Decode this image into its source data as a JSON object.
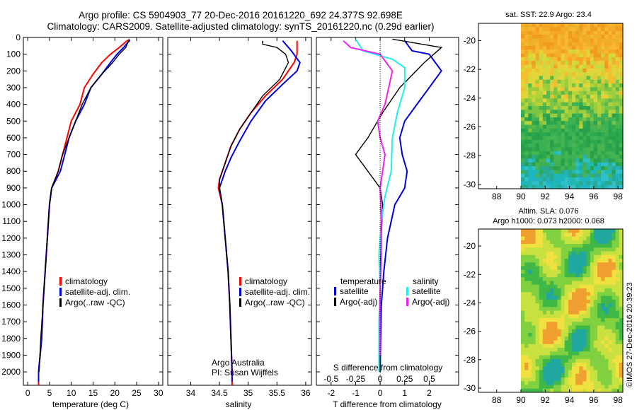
{
  "title": {
    "line1": "Argo profile: CS 5904903_77 20-Dec-2016 20161220_692 24.377S 92.698E",
    "line2": "Climatology: CARS2009. Satellite-adjusted climatology: synTS_20161220.nc (0.29d earlier)"
  },
  "colors": {
    "climatology": "#ff0000",
    "satellite": "#0000dd",
    "argo": "#000000",
    "sat_salinity": "#22eeee",
    "argo_adj_salinity": "#ee22ee"
  },
  "chart_data": [
    {
      "type": "line",
      "id": "temperature",
      "xlabel": "temperature (deg C)",
      "xlim": [
        -1,
        31
      ],
      "xticks": [
        0,
        5,
        10,
        15,
        20,
        25,
        30
      ],
      "ylim": [
        2080,
        0
      ],
      "yticks": [
        0,
        100,
        200,
        300,
        400,
        500,
        600,
        700,
        800,
        900,
        1000,
        1100,
        1200,
        1300,
        1400,
        1500,
        1600,
        1700,
        1800,
        1900,
        2000
      ],
      "legend": [
        "climatology",
        "satellite-adj. clim.",
        "Argo(..raw -QC)"
      ],
      "series": [
        {
          "name": "climatology",
          "color": "#ff0000",
          "points": [
            [
              23,
              15
            ],
            [
              21,
              60
            ],
            [
              19,
              100
            ],
            [
              17,
              150
            ],
            [
              15,
              220
            ],
            [
              13,
              300
            ],
            [
              12,
              400
            ],
            [
              10,
              500
            ],
            [
              9,
              600
            ],
            [
              8,
              700
            ],
            [
              7,
              800
            ],
            [
              5.5,
              900
            ],
            [
              5,
              1000
            ],
            [
              4.5,
              1200
            ],
            [
              4,
              1400
            ],
            [
              3.5,
              1600
            ],
            [
              3.2,
              1800
            ],
            [
              2.5,
              2000
            ],
            [
              2.5,
              2080
            ]
          ]
        },
        {
          "name": "satellite-adj. clim.",
          "color": "#0000dd",
          "points": [
            [
              23.5,
              15
            ],
            [
              22,
              60
            ],
            [
              20.5,
              100
            ],
            [
              19,
              150
            ],
            [
              17,
              220
            ],
            [
              14.5,
              300
            ],
            [
              13,
              400
            ],
            [
              11,
              500
            ],
            [
              9.5,
              600
            ],
            [
              8.5,
              700
            ],
            [
              7.5,
              800
            ],
            [
              5.5,
              900
            ],
            [
              5,
              1000
            ],
            [
              4.5,
              1200
            ],
            [
              4,
              1400
            ],
            [
              3.5,
              1600
            ],
            [
              3.2,
              1800
            ],
            [
              2.5,
              2000
            ],
            [
              2.5,
              2060
            ]
          ]
        },
        {
          "name": "Argo(..raw -QC)",
          "color": "#000000",
          "points": [
            [
              23.3,
              10
            ],
            [
              22.5,
              60
            ],
            [
              21,
              100
            ],
            [
              19.5,
              150
            ],
            [
              17,
              220
            ],
            [
              14.5,
              300
            ],
            [
              12.5,
              400
            ],
            [
              11,
              500
            ],
            [
              9.5,
              600
            ],
            [
              8,
              700
            ],
            [
              7,
              800
            ],
            [
              5.5,
              900
            ],
            [
              5,
              1000
            ],
            [
              4.5,
              1200
            ],
            [
              4,
              1400
            ],
            [
              3.5,
              1600
            ],
            [
              3,
              1800
            ],
            [
              2.6,
              2000
            ]
          ]
        }
      ]
    },
    {
      "type": "line",
      "id": "salinity",
      "xlabel": "salinity",
      "xlim": [
        33.6,
        36.1
      ],
      "xticks": [
        34,
        34.5,
        35,
        35.5,
        36
      ],
      "xticklabels": [
        "34",
        "34.5",
        "35",
        "35.5",
        "36"
      ],
      "legend": [
        "climatology",
        "satellite-adj. clim.",
        "Argo(..raw -QC)"
      ],
      "annotation": [
        "Argo Australia",
        "PI: Susan Wijffels"
      ],
      "series": [
        {
          "name": "climatology",
          "color": "#ff0000",
          "points": [
            [
              35.85,
              20
            ],
            [
              35.85,
              100
            ],
            [
              35.8,
              150
            ],
            [
              35.6,
              250
            ],
            [
              35.3,
              350
            ],
            [
              35.05,
              450
            ],
            [
              34.85,
              550
            ],
            [
              34.7,
              650
            ],
            [
              34.6,
              750
            ],
            [
              34.5,
              850
            ],
            [
              34.48,
              900
            ],
            [
              34.55,
              1000
            ],
            [
              34.6,
              1200
            ],
            [
              34.65,
              1400
            ],
            [
              34.68,
              1600
            ],
            [
              34.7,
              1800
            ],
            [
              34.72,
              2000
            ],
            [
              34.72,
              2080
            ]
          ]
        },
        {
          "name": "satellite-adj. clim.",
          "color": "#0000dd",
          "points": [
            [
              35.6,
              20
            ],
            [
              35.75,
              80
            ],
            [
              35.9,
              150
            ],
            [
              35.85,
              200
            ],
            [
              35.6,
              280
            ],
            [
              35.3,
              380
            ],
            [
              35.05,
              500
            ],
            [
              34.85,
              620
            ],
            [
              34.7,
              720
            ],
            [
              34.6,
              800
            ],
            [
              34.5,
              900
            ],
            [
              34.55,
              1000
            ],
            [
              34.6,
              1200
            ],
            [
              34.65,
              1400
            ],
            [
              34.68,
              1600
            ],
            [
              34.7,
              1800
            ],
            [
              34.72,
              2000
            ],
            [
              34.72,
              2060
            ]
          ]
        },
        {
          "name": "Argo(..raw -QC)",
          "color": "#000000",
          "points": [
            [
              35.25,
              20
            ],
            [
              35.25,
              40
            ],
            [
              35.5,
              60
            ],
            [
              35.65,
              100
            ],
            [
              35.7,
              150
            ],
            [
              35.55,
              250
            ],
            [
              35.25,
              350
            ],
            [
              35.05,
              450
            ],
            [
              34.85,
              550
            ],
            [
              34.7,
              650
            ],
            [
              34.6,
              750
            ],
            [
              34.5,
              850
            ],
            [
              34.5,
              900
            ],
            [
              34.55,
              1000
            ],
            [
              34.6,
              1200
            ],
            [
              34.65,
              1400
            ],
            [
              34.68,
              1600
            ],
            [
              34.7,
              1800
            ],
            [
              34.72,
              2000
            ]
          ]
        }
      ]
    },
    {
      "type": "line",
      "id": "difference",
      "xlabel": "T difference from climatology",
      "xlabel_top": "S difference from climatology",
      "xlim": [
        -2.6,
        3.2
      ],
      "xticks": [
        -2,
        -1,
        0,
        1,
        2
      ],
      "xticklabels": [
        "-2",
        "-1",
        "0",
        "1",
        "2"
      ],
      "sticks": [
        -1,
        -0.5,
        0,
        0.5,
        1
      ],
      "sticklabels": [
        "-0.5",
        "-0.25",
        "0",
        "0.25",
        "0.5"
      ],
      "legend_title_left": "temperature",
      "legend_title_right": "salinity",
      "legend": [
        "satellite",
        "Argo(-adj)",
        "satellite",
        "Argo(-adj)"
      ],
      "series": [
        {
          "name": "satellite",
          "color": "#0000dd",
          "points": [
            [
              1,
              20
            ],
            [
              1.3,
              80
            ],
            [
              2,
              100
            ],
            [
              2.5,
              200
            ],
            [
              2,
              300
            ],
            [
              1.5,
              400
            ],
            [
              1,
              500
            ],
            [
              0.8,
              600
            ],
            [
              0.9,
              700
            ],
            [
              1.1,
              800
            ],
            [
              1,
              900
            ],
            [
              0.6,
              1000
            ],
            [
              0.3,
              1200
            ],
            [
              0.15,
              1400
            ],
            [
              0.05,
              1600
            ],
            [
              0.02,
              1800
            ],
            [
              0,
              2000
            ]
          ]
        },
        {
          "name": "Argo(-adj)",
          "color": "#000000",
          "points": [
            [
              0.5,
              10
            ],
            [
              2.5,
              60
            ],
            [
              1.8,
              150
            ],
            [
              0.8,
              300
            ],
            [
              0.1,
              450
            ],
            [
              -0.5,
              600
            ],
            [
              -1,
              700
            ],
            [
              -0.5,
              800
            ],
            [
              0,
              900
            ],
            [
              0.1,
              1000
            ],
            [
              0.05,
              1200
            ],
            [
              0,
              1400
            ],
            [
              0,
              1600
            ],
            [
              0,
              1800
            ],
            [
              0,
              2000
            ]
          ]
        },
        {
          "name": "satellite",
          "color": "#22eeee",
          "points": [
            [
              -1,
              10
            ],
            [
              -0.7,
              80
            ],
            [
              0.5,
              130
            ],
            [
              1,
              180
            ],
            [
              1,
              300
            ],
            [
              0.7,
              450
            ],
            [
              0.5,
              600
            ],
            [
              0.45,
              800
            ],
            [
              0.2,
              950
            ],
            [
              0.05,
              1100
            ],
            [
              -0.05,
              1300
            ],
            [
              0,
              1500
            ],
            [
              -0.05,
              1700
            ],
            [
              -0.05,
              1900
            ],
            [
              -0.05,
              2000
            ]
          ]
        },
        {
          "name": "Argo(-adj)",
          "color": "#ee22ee",
          "points": [
            [
              -1.5,
              20
            ],
            [
              -1.2,
              60
            ],
            [
              0,
              100
            ],
            [
              0.5,
              200
            ],
            [
              0.2,
              400
            ],
            [
              -0.1,
              500
            ],
            [
              0,
              600
            ],
            [
              0.2,
              700
            ],
            [
              0,
              900
            ],
            [
              0.05,
              1100
            ],
            [
              0.05,
              1300
            ],
            [
              0,
              1500
            ],
            [
              0,
              1700
            ],
            [
              0,
              1900
            ]
          ]
        }
      ]
    },
    {
      "type": "heatmap",
      "id": "sst",
      "title": "sat. SST: 22.9  Argo: 23.4",
      "xlim": [
        86.5,
        98.4
      ],
      "ylim": [
        -30.3,
        -18.8
      ],
      "xticks": [
        88,
        90,
        92,
        94,
        96,
        98
      ],
      "yticks": [
        -20,
        -22,
        -24,
        -26,
        -28,
        -30
      ]
    },
    {
      "type": "heatmap",
      "id": "sla",
      "title_line1": "Altim. SLA: 0.076",
      "title_line2": "Argo h1000: 0.073 h2000: 0.068",
      "xlim": [
        86.5,
        98.4
      ],
      "ylim": [
        -30.3,
        -18.8
      ],
      "xticks": [
        88,
        90,
        92,
        94,
        96,
        98
      ],
      "yticks": [
        -20,
        -22,
        -24,
        -26,
        -28,
        -30
      ]
    }
  ],
  "footer_stamp": "©IMOS 27-Dec-2016 20:39:23"
}
